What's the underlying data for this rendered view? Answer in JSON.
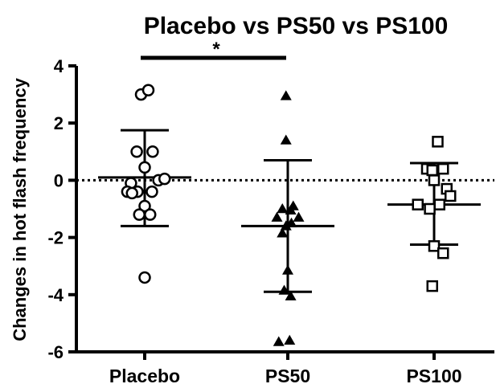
{
  "chart_data": {
    "type": "scatter",
    "title": "Placebo vs PS50 vs PS100",
    "ylabel": "Changes in hot flash frequency",
    "xlabel": "",
    "categories": [
      "Placebo",
      "PS50",
      "PS100"
    ],
    "ylim": [
      -6,
      4
    ],
    "yticks": [
      "4",
      "2",
      "0",
      "-2",
      "-4",
      "-6"
    ],
    "yticks_values": [
      4,
      2,
      0,
      -2,
      -4,
      -6
    ],
    "reference_line": {
      "y": 0,
      "style": "dotted"
    },
    "significance": {
      "from": "Placebo",
      "to": "PS50",
      "label": "*"
    },
    "series": [
      {
        "category": "Placebo",
        "marker": "open-circle",
        "mean": 0.1,
        "sd_upper": 1.75,
        "sd_lower": -1.6,
        "points": [
          {
            "dx": -0.1,
            "y": 3.0
          },
          {
            "dx": 0.1,
            "y": 3.15
          },
          {
            "dx": -0.22,
            "y": 1.0
          },
          {
            "dx": 0.22,
            "y": 1.0
          },
          {
            "dx": 0.0,
            "y": 0.45
          },
          {
            "dx": -0.38,
            "y": -0.1
          },
          {
            "dx": 0.38,
            "y": 0.0
          },
          {
            "dx": 0.55,
            "y": 0.05
          },
          {
            "dx": -0.48,
            "y": -0.4
          },
          {
            "dx": -0.2,
            "y": -0.4
          },
          {
            "dx": 0.2,
            "y": -0.4
          },
          {
            "dx": -0.35,
            "y": -0.45
          },
          {
            "dx": 0.0,
            "y": -0.9
          },
          {
            "dx": -0.15,
            "y": -1.2
          },
          {
            "dx": 0.15,
            "y": -1.2
          },
          {
            "dx": 0.0,
            "y": -3.4
          }
        ]
      },
      {
        "category": "PS50",
        "marker": "filled-triangle",
        "mean": -1.6,
        "sd_upper": 0.7,
        "sd_lower": -3.9,
        "points": [
          {
            "dx": -0.05,
            "y": 2.95
          },
          {
            "dx": -0.05,
            "y": 1.4
          },
          {
            "dx": 0.15,
            "y": -0.9
          },
          {
            "dx": -0.15,
            "y": -1.0
          },
          {
            "dx": 0.08,
            "y": -1.05
          },
          {
            "dx": -0.3,
            "y": -1.3
          },
          {
            "dx": 0.3,
            "y": -1.3
          },
          {
            "dx": -0.05,
            "y": -1.6
          },
          {
            "dx": 0.1,
            "y": -1.5
          },
          {
            "dx": -0.15,
            "y": -1.85
          },
          {
            "dx": 0.0,
            "y": -3.15
          },
          {
            "dx": -0.1,
            "y": -3.85
          },
          {
            "dx": 0.08,
            "y": -4.05
          },
          {
            "dx": -0.25,
            "y": -5.65
          },
          {
            "dx": 0.05,
            "y": -5.6
          }
        ]
      },
      {
        "category": "PS100",
        "marker": "open-square",
        "mean": -0.85,
        "sd_upper": 0.6,
        "sd_lower": -2.25,
        "points": [
          {
            "dx": 0.1,
            "y": 1.35
          },
          {
            "dx": -0.2,
            "y": 0.4
          },
          {
            "dx": -0.05,
            "y": 0.35
          },
          {
            "dx": 0.25,
            "y": 0.4
          },
          {
            "dx": 0.0,
            "y": 0.0
          },
          {
            "dx": 0.35,
            "y": -0.3
          },
          {
            "dx": 0.45,
            "y": -0.55
          },
          {
            "dx": -0.45,
            "y": -0.85
          },
          {
            "dx": -0.12,
            "y": -1.0
          },
          {
            "dx": 0.15,
            "y": -0.85
          },
          {
            "dx": 0.0,
            "y": -2.3
          },
          {
            "dx": 0.25,
            "y": -2.55
          },
          {
            "dx": -0.05,
            "y": -3.7
          }
        ]
      }
    ]
  }
}
